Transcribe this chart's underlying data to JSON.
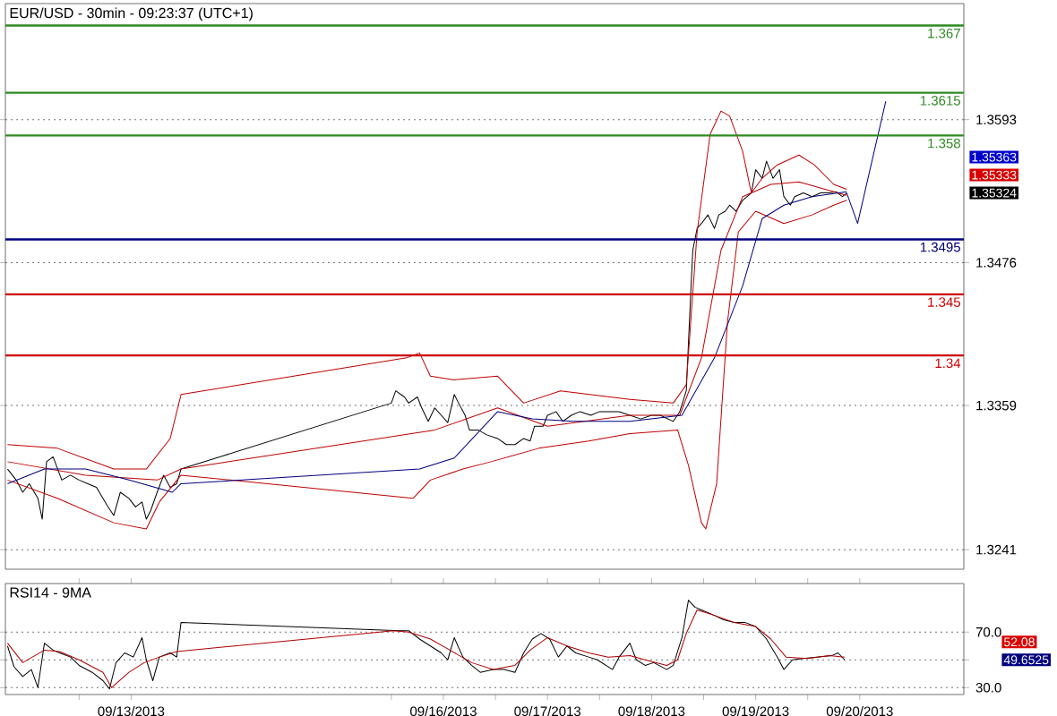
{
  "chart_data": [
    {
      "type": "line",
      "title": "EUR/USD - 30min - 09:23:37 (UTC+1)",
      "xlim": [
        "2013-09-12T07:00",
        "2013-09-21T12:00"
      ],
      "ylim": [
        1.3225,
        1.3688
      ],
      "yticks": [
        1.3241,
        1.3359,
        1.3476,
        1.3593
      ],
      "grid": "y",
      "tick_labels": "y",
      "series": [
        {
          "color": "#000000",
          "x": [
            "2013-09-12T07:30",
            "2013-09-12T09:30",
            "2013-09-12T11:00",
            "2013-09-12T12:30",
            "2013-09-12T14:30",
            "2013-09-12T15:30",
            "2013-09-12T16:30",
            "2013-09-12T18:00",
            "2013-09-12T20:00",
            "2013-09-12T22:00",
            "2013-09-13T00:00",
            "2013-09-13T02:00",
            "2013-09-13T04:00",
            "2013-09-13T06:30",
            "2013-09-13T08:00",
            "2013-09-13T09:30",
            "2013-09-13T11:30",
            "2013-09-13T13:00",
            "2013-09-13T14:30",
            "2013-09-13T15:30",
            "2013-09-13T16:30",
            "2013-09-13T18:00",
            "2013-09-13T19:30",
            "2013-09-13T21:00",
            "2013-09-13T22:30",
            "2013-09-13T23:30",
            "2013-09-16T00:00",
            "2013-09-16T01:00",
            "2013-09-16T03:00",
            "2013-09-16T04:00",
            "2013-09-16T06:00",
            "2013-09-16T07:00",
            "2013-09-16T08:30",
            "2013-09-16T10:00",
            "2013-09-16T11:30",
            "2013-09-16T13:00",
            "2013-09-16T14:30",
            "2013-09-16T15:30",
            "2013-09-16T17:00",
            "2013-09-16T18:00",
            "2013-09-16T20:00",
            "2013-09-16T22:00",
            "2013-09-17T00:30",
            "2013-09-17T02:30",
            "2013-09-17T04:30",
            "2013-09-17T06:30",
            "2013-09-17T08:00",
            "2013-09-17T09:00",
            "2013-09-17T11:00",
            "2013-09-17T12:00",
            "2013-09-17T14:00",
            "2013-09-17T15:30",
            "2013-09-17T17:30",
            "2013-09-17T19:30",
            "2013-09-17T22:00",
            "2013-09-18T00:00",
            "2013-09-18T02:00",
            "2013-09-18T04:30",
            "2013-09-18T07:00",
            "2013-09-18T09:30",
            "2013-09-18T12:00",
            "2013-09-18T14:00",
            "2013-09-18T17:00",
            "2013-09-18T18:30",
            "2013-09-18T20:00",
            "2013-09-18T21:00",
            "2013-09-18T21:30",
            "2013-09-18T22:30",
            "2013-09-18T23:30",
            "2013-09-19T01:00",
            "2013-09-19T02:30",
            "2013-09-19T03:30",
            "2013-09-19T05:00",
            "2013-09-19T06:00",
            "2013-09-19T07:30",
            "2013-09-19T09:00",
            "2013-09-19T11:00",
            "2013-09-19T12:00",
            "2013-09-19T13:30",
            "2013-09-19T14:30",
            "2013-09-19T16:00",
            "2013-09-19T17:30",
            "2013-09-19T18:30",
            "2013-09-19T20:00",
            "2013-09-19T21:00",
            "2013-09-19T23:00",
            "2013-09-20T01:00",
            "2013-09-20T03:00",
            "2013-09-20T05:00",
            "2013-09-20T06:30",
            "2013-09-20T08:00",
            "2013-09-20T09:00"
          ],
          "values": [
            1.3307,
            1.3298,
            1.3288,
            1.3295,
            1.3283,
            1.3266,
            1.3313,
            1.3317,
            1.3298,
            1.3302,
            1.3298,
            1.3295,
            1.3292,
            1.3277,
            1.3269,
            1.3288,
            1.3283,
            1.3276,
            1.328,
            1.3266,
            1.3273,
            1.3288,
            1.3302,
            1.3292,
            1.3295,
            1.3307,
            1.3361,
            1.3371,
            1.3366,
            1.3361,
            1.3366,
            1.3357,
            1.3346,
            1.3357,
            1.3351,
            1.3345,
            1.3368,
            1.3361,
            1.3351,
            1.3339,
            1.3339,
            1.3335,
            1.3332,
            1.3327,
            1.3327,
            1.3332,
            1.333,
            1.3342,
            1.3342,
            1.3351,
            1.3354,
            1.3346,
            1.3351,
            1.3354,
            1.3351,
            1.3354,
            1.3354,
            1.3354,
            1.3351,
            1.3348,
            1.3351,
            1.3351,
            1.3346,
            1.3354,
            1.3371,
            1.3449,
            1.3486,
            1.3504,
            1.3508,
            1.3515,
            1.3504,
            1.3515,
            1.3518,
            1.3523,
            1.3518,
            1.3527,
            1.3533,
            1.3552,
            1.3545,
            1.3559,
            1.3545,
            1.3552,
            1.353,
            1.3523,
            1.353,
            1.3533,
            1.353,
            1.3533,
            1.3533,
            1.3534,
            1.353,
            1.3533
          ]
        },
        {
          "color": "#c00000",
          "x": [
            "2013-09-12T07:30",
            "2013-09-12T19:00",
            "2013-09-13T08:00",
            "2013-09-13T15:30",
            "2013-09-13T21:00",
            "2013-09-13T23:30",
            "2013-09-16T03:30",
            "2013-09-16T06:30",
            "2013-09-16T09:00",
            "2013-09-16T14:30",
            "2013-09-17T00:30",
            "2013-09-17T06:30",
            "2013-09-17T15:00",
            "2013-09-18T07:00",
            "2013-09-18T17:00",
            "2013-09-18T20:00",
            "2013-09-18T22:30",
            "2013-09-19T01:30",
            "2013-09-19T04:00",
            "2013-09-19T06:00",
            "2013-09-19T09:00",
            "2013-09-19T11:00",
            "2013-09-19T13:30",
            "2013-09-19T17:00",
            "2013-09-19T22:00",
            "2013-09-20T01:30",
            "2013-09-20T06:00",
            "2013-09-20T09:00"
          ],
          "values": [
            1.3327,
            1.3324,
            1.3307,
            1.3307,
            1.3332,
            1.3368,
            1.3398,
            1.3402,
            1.3383,
            1.338,
            1.3383,
            1.3361,
            1.3371,
            1.3364,
            1.3361,
            1.3376,
            1.3501,
            1.3581,
            1.36,
            1.3596,
            1.3567,
            1.3533,
            1.3545,
            1.3556,
            1.3564,
            1.3556,
            1.354,
            1.3536
          ]
        },
        {
          "color": "#c00000",
          "x": [
            "2013-09-12T07:30",
            "2013-09-13T01:30",
            "2013-09-13T18:00",
            "2013-09-13T23:30",
            "2013-09-16T10:00",
            "2013-09-17T00:30",
            "2013-09-17T12:00",
            "2013-09-18T07:00",
            "2013-09-18T18:30",
            "2013-09-18T23:30",
            "2013-09-19T04:00",
            "2013-09-19T09:00",
            "2013-09-19T15:30",
            "2013-09-19T22:00",
            "2013-09-20T04:00",
            "2013-09-20T09:00"
          ],
          "values": [
            1.3313,
            1.3302,
            1.3298,
            1.3307,
            1.3339,
            1.3357,
            1.3342,
            1.3351,
            1.3351,
            1.3398,
            1.3486,
            1.353,
            1.354,
            1.3542,
            1.3536,
            1.3531
          ]
        },
        {
          "color": "#c00000",
          "x": [
            "2013-09-12T07:30",
            "2013-09-12T19:00",
            "2013-09-13T08:00",
            "2013-09-13T15:30",
            "2013-09-13T18:30",
            "2013-09-13T23:30",
            "2013-09-16T05:00",
            "2013-09-16T09:00",
            "2013-09-16T16:30",
            "2013-09-16T23:00",
            "2013-09-17T10:00",
            "2013-09-17T21:30",
            "2013-09-18T07:00",
            "2013-09-18T18:00",
            "2013-09-18T20:30",
            "2013-09-18T23:30",
            "2013-09-19T00:30",
            "2013-09-19T03:00",
            "2013-09-19T05:30",
            "2013-09-19T08:00",
            "2013-09-19T12:00",
            "2013-09-19T18:30",
            "2013-09-20T01:00",
            "2013-09-20T06:00",
            "2013-09-20T09:00"
          ],
          "values": [
            1.3298,
            1.3283,
            1.3263,
            1.3258,
            1.328,
            1.3302,
            1.3283,
            1.3298,
            1.3307,
            1.3313,
            1.3324,
            1.333,
            1.3336,
            1.3339,
            1.331,
            1.3263,
            1.3258,
            1.3295,
            1.3427,
            1.3501,
            1.3518,
            1.3508,
            1.3515,
            1.3523,
            1.3527
          ]
        },
        {
          "color": "#000080",
          "x": [
            "2013-09-12T07:30",
            "2013-09-12T16:00",
            "2013-09-13T01:30",
            "2013-09-13T11:30",
            "2013-09-13T21:30",
            "2013-09-13T23:30",
            "2013-09-16T06:30",
            "2013-09-16T14:30",
            "2013-09-17T00:30",
            "2013-09-17T08:30",
            "2013-09-17T18:00",
            "2013-09-18T07:00",
            "2013-09-18T19:00",
            "2013-09-19T02:30",
            "2013-09-19T09:00",
            "2013-09-19T13:30",
            "2013-09-19T18:30",
            "2013-09-20T01:00",
            "2013-09-20T09:00"
          ],
          "values": [
            1.3295,
            1.3307,
            1.3307,
            1.3298,
            1.3288,
            1.3295,
            1.3307,
            1.3316,
            1.3354,
            1.3348,
            1.3346,
            1.3346,
            1.3351,
            1.3398,
            1.3457,
            1.3512,
            1.3523,
            1.353,
            1.3534
          ]
        },
        {
          "color": "#000080",
          "x": [
            "2013-09-20T09:00",
            "2013-09-20T11:30",
            "2013-09-20T18:00"
          ],
          "values": [
            1.3533,
            1.3508,
            1.3608
          ]
        }
      ],
      "ref_lines": [
        {
          "axis": "y",
          "value": 1.367,
          "label": "1.367",
          "color": "#2e8b22"
        },
        {
          "axis": "y",
          "value": 1.3615,
          "label": "1.3615",
          "color": "#2e8b22"
        },
        {
          "axis": "y",
          "value": 1.358,
          "label": "1.358",
          "color": "#2e8b22"
        },
        {
          "axis": "y",
          "value": 1.3495,
          "label": "1.3495",
          "color": "#000080"
        },
        {
          "axis": "y",
          "value": 1.345,
          "label": "1.345",
          "color": "#cc0000"
        },
        {
          "axis": "y",
          "value": 1.34,
          "label": "1.34",
          "color": "#cc0000"
        }
      ],
      "annotations": [
        "1.35363",
        "1.35333",
        "1.35324"
      ]
    },
    {
      "type": "line",
      "title": "RSI14 - 9MA",
      "xlim": [
        "2013-09-12T07:00",
        "2013-09-21T12:00"
      ],
      "ylim": [
        25,
        105
      ],
      "xticks": [
        {
          "value": "2013-09-13",
          "label": null
        },
        {
          "value": "2013-09-13T12:00",
          "label": "09/13/2013"
        },
        {
          "value": "2013-09-16",
          "label": null
        },
        {
          "value": "2013-09-16T12:00",
          "label": "09/16/2013"
        },
        {
          "value": "2013-09-17",
          "label": null
        },
        {
          "value": "2013-09-17T12:00",
          "label": "09/17/2013"
        },
        {
          "value": "2013-09-18",
          "label": null
        },
        {
          "value": "2013-09-18T12:00",
          "label": "09/18/2013"
        },
        {
          "value": "2013-09-19",
          "label": null
        },
        {
          "value": "2013-09-19T12:00",
          "label": "09/19/2013"
        },
        {
          "value": "2013-09-20",
          "label": null
        },
        {
          "value": "2013-09-20T12:00",
          "label": "09/20/2013"
        }
      ],
      "yticks": [
        {
          "value": 30,
          "label": "30.0"
        },
        {
          "value": 50,
          "label": null
        },
        {
          "value": 70,
          "label": "70.0"
        }
      ],
      "grid": "y",
      "series": [
        {
          "color": "#000000",
          "x": [
            "2013-09-12T07:30",
            "2013-09-12T09:00",
            "2013-09-12T11:00",
            "2013-09-12T13:00",
            "2013-09-12T14:30",
            "2013-09-12T16:00",
            "2013-09-12T18:00",
            "2013-09-12T19:30",
            "2013-09-12T22:00",
            "2013-09-13T00:00",
            "2013-09-13T03:00",
            "2013-09-13T05:30",
            "2013-09-13T07:00",
            "2013-09-13T08:30",
            "2013-09-13T10:30",
            "2013-09-13T12:30",
            "2013-09-13T14:30",
            "2013-09-13T15:30",
            "2013-09-13T17:00",
            "2013-09-13T18:30",
            "2013-09-13T21:00",
            "2013-09-13T22:30",
            "2013-09-13T23:30",
            "2013-09-16T02:00",
            "2013-09-16T04:00",
            "2013-09-16T06:30",
            "2013-09-16T09:00",
            "2013-09-16T11:30",
            "2013-09-16T13:00",
            "2013-09-16T14:30",
            "2013-09-16T16:30",
            "2013-09-16T18:30",
            "2013-09-16T20:30",
            "2013-09-16T23:30",
            "2013-09-17T02:00",
            "2013-09-17T04:30",
            "2013-09-17T06:30",
            "2013-09-17T08:30",
            "2013-09-17T10:30",
            "2013-09-17T12:30",
            "2013-09-17T14:30",
            "2013-09-17T16:30",
            "2013-09-17T18:30",
            "2013-09-17T21:30",
            "2013-09-17T23:30",
            "2013-09-18T03:00",
            "2013-09-18T04:30",
            "2013-09-18T07:00",
            "2013-09-18T08:30",
            "2013-09-18T10:30",
            "2013-09-18T12:30",
            "2013-09-18T15:30",
            "2013-09-18T17:00",
            "2013-09-18T19:00",
            "2013-09-18T20:30",
            "2013-09-18T22:00",
            "2013-09-18T23:30",
            "2013-09-19T02:30",
            "2013-09-19T04:30",
            "2013-09-19T07:00",
            "2013-09-19T09:30",
            "2013-09-19T12:00",
            "2013-09-19T14:30",
            "2013-09-19T17:00",
            "2013-09-19T18:30",
            "2013-09-19T20:30",
            "2013-09-19T23:00",
            "2013-09-20T02:00",
            "2013-09-20T05:30",
            "2013-09-20T07:00",
            "2013-09-20T08:30"
          ],
          "values": [
            60,
            45,
            38,
            43,
            30,
            62,
            57,
            55,
            52,
            46,
            41,
            35,
            29,
            48,
            55,
            52,
            66,
            50,
            35,
            52,
            55,
            52,
            77,
            71,
            71,
            65,
            60,
            55,
            50,
            66,
            52,
            46,
            41,
            43,
            43,
            41,
            55,
            65,
            69,
            65,
            52,
            60,
            55,
            52,
            50,
            43,
            52,
            62,
            50,
            46,
            48,
            43,
            46,
            66,
            93,
            88,
            86,
            82,
            79,
            77,
            77,
            74,
            65,
            52,
            43,
            50,
            51,
            52,
            53,
            55,
            50
          ]
        },
        {
          "color": "#b00000",
          "x": [
            "2013-09-12T07:30",
            "2013-09-12T11:00",
            "2013-09-12T16:00",
            "2013-09-12T19:30",
            "2013-09-13T00:00",
            "2013-09-13T05:30",
            "2013-09-13T07:30",
            "2013-09-13T11:30",
            "2013-09-13T15:00",
            "2013-09-13T18:30",
            "2013-09-13T22:30",
            "2013-09-16T00:30",
            "2013-09-16T04:00",
            "2013-09-16T09:00",
            "2013-09-16T13:30",
            "2013-09-16T18:30",
            "2013-09-16T23:30",
            "2013-09-17T04:30",
            "2013-09-17T08:00",
            "2013-09-17T12:00",
            "2013-09-17T16:30",
            "2013-09-17T21:30",
            "2013-09-18T02:00",
            "2013-09-18T07:00",
            "2013-09-18T10:30",
            "2013-09-18T15:30",
            "2013-09-18T18:00",
            "2013-09-18T20:00",
            "2013-09-18T22:30",
            "2013-09-19T02:30",
            "2013-09-19T07:00",
            "2013-09-19T12:00",
            "2013-09-19T15:30",
            "2013-09-19T19:00",
            "2013-09-20T00:00",
            "2013-09-20T05:00",
            "2013-09-20T08:30"
          ],
          "values": [
            62,
            48,
            57,
            56,
            50,
            41,
            30,
            41,
            48,
            52,
            56,
            71,
            70,
            65,
            57,
            48,
            43,
            46,
            57,
            66,
            60,
            55,
            52,
            53,
            50,
            46,
            50,
            69,
            86,
            82,
            77,
            74,
            65,
            52,
            51,
            53,
            52
          ]
        }
      ],
      "annotations": [
        "52.08",
        "49.6525"
      ]
    }
  ]
}
